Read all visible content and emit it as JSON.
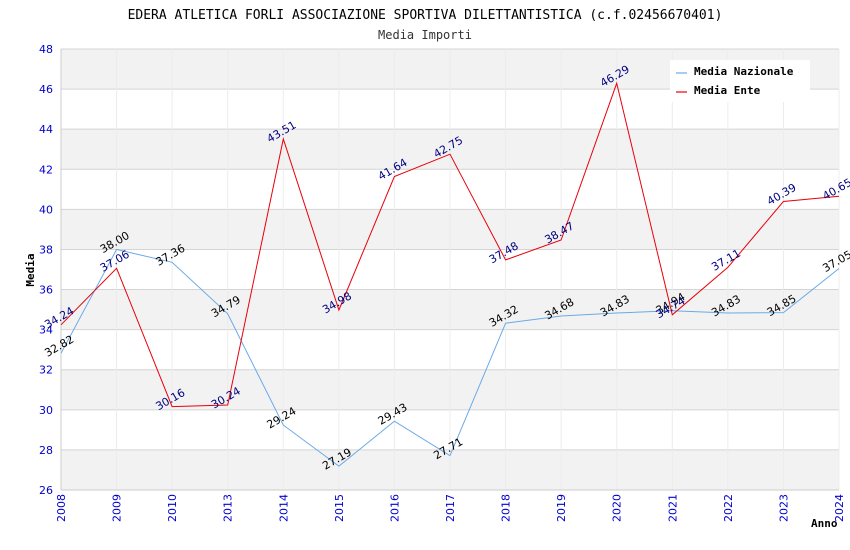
{
  "chart_data": {
    "type": "line",
    "title": "EDERA ATLETICA FORLI ASSOCIAZIONE SPORTIVA DILETTANTISTICA (c.f.02456670401)",
    "subtitle": "Media Importi",
    "xlabel": "Anno",
    "ylabel": "Media",
    "ylim": [
      26,
      48
    ],
    "yticks": [
      "26",
      "28",
      "30",
      "32",
      "34",
      "36",
      "38",
      "40",
      "42",
      "44",
      "46",
      "48"
    ],
    "categories": [
      "2008",
      "2009",
      "2010",
      "2013",
      "2014",
      "2015",
      "2016",
      "2017",
      "2018",
      "2019",
      "2020",
      "2021",
      "2022",
      "2023",
      "2024"
    ],
    "grid": true,
    "legend_position": "top-right",
    "series": [
      {
        "name": "Media Nazionale",
        "color": "#6aa9e8",
        "values": [
          32.82,
          38.0,
          37.36,
          34.79,
          29.24,
          27.19,
          29.43,
          27.71,
          34.32,
          34.68,
          34.83,
          34.94,
          34.83,
          34.85,
          37.05
        ],
        "labels": [
          "32.82",
          "38.00",
          "37.36",
          "34.79",
          "29.24",
          "27.19",
          "29.43",
          "27.71",
          "34.32",
          "34.68",
          "34.83",
          "34.94",
          "34.83",
          "34.85",
          "37.05"
        ]
      },
      {
        "name": "Media Ente",
        "color": "#e8000b",
        "values": [
          34.24,
          37.06,
          30.16,
          30.24,
          43.51,
          34.98,
          41.64,
          42.75,
          37.48,
          38.47,
          46.29,
          34.74,
          37.11,
          40.39,
          40.65
        ],
        "labels": [
          "34.24",
          "37.06",
          "30.16",
          "30.24",
          "43.51",
          "34.98",
          "41.64",
          "42.75",
          "37.48",
          "38.47",
          "46.29",
          "34.74",
          "37.11",
          "40.39",
          "40.65"
        ]
      }
    ]
  }
}
